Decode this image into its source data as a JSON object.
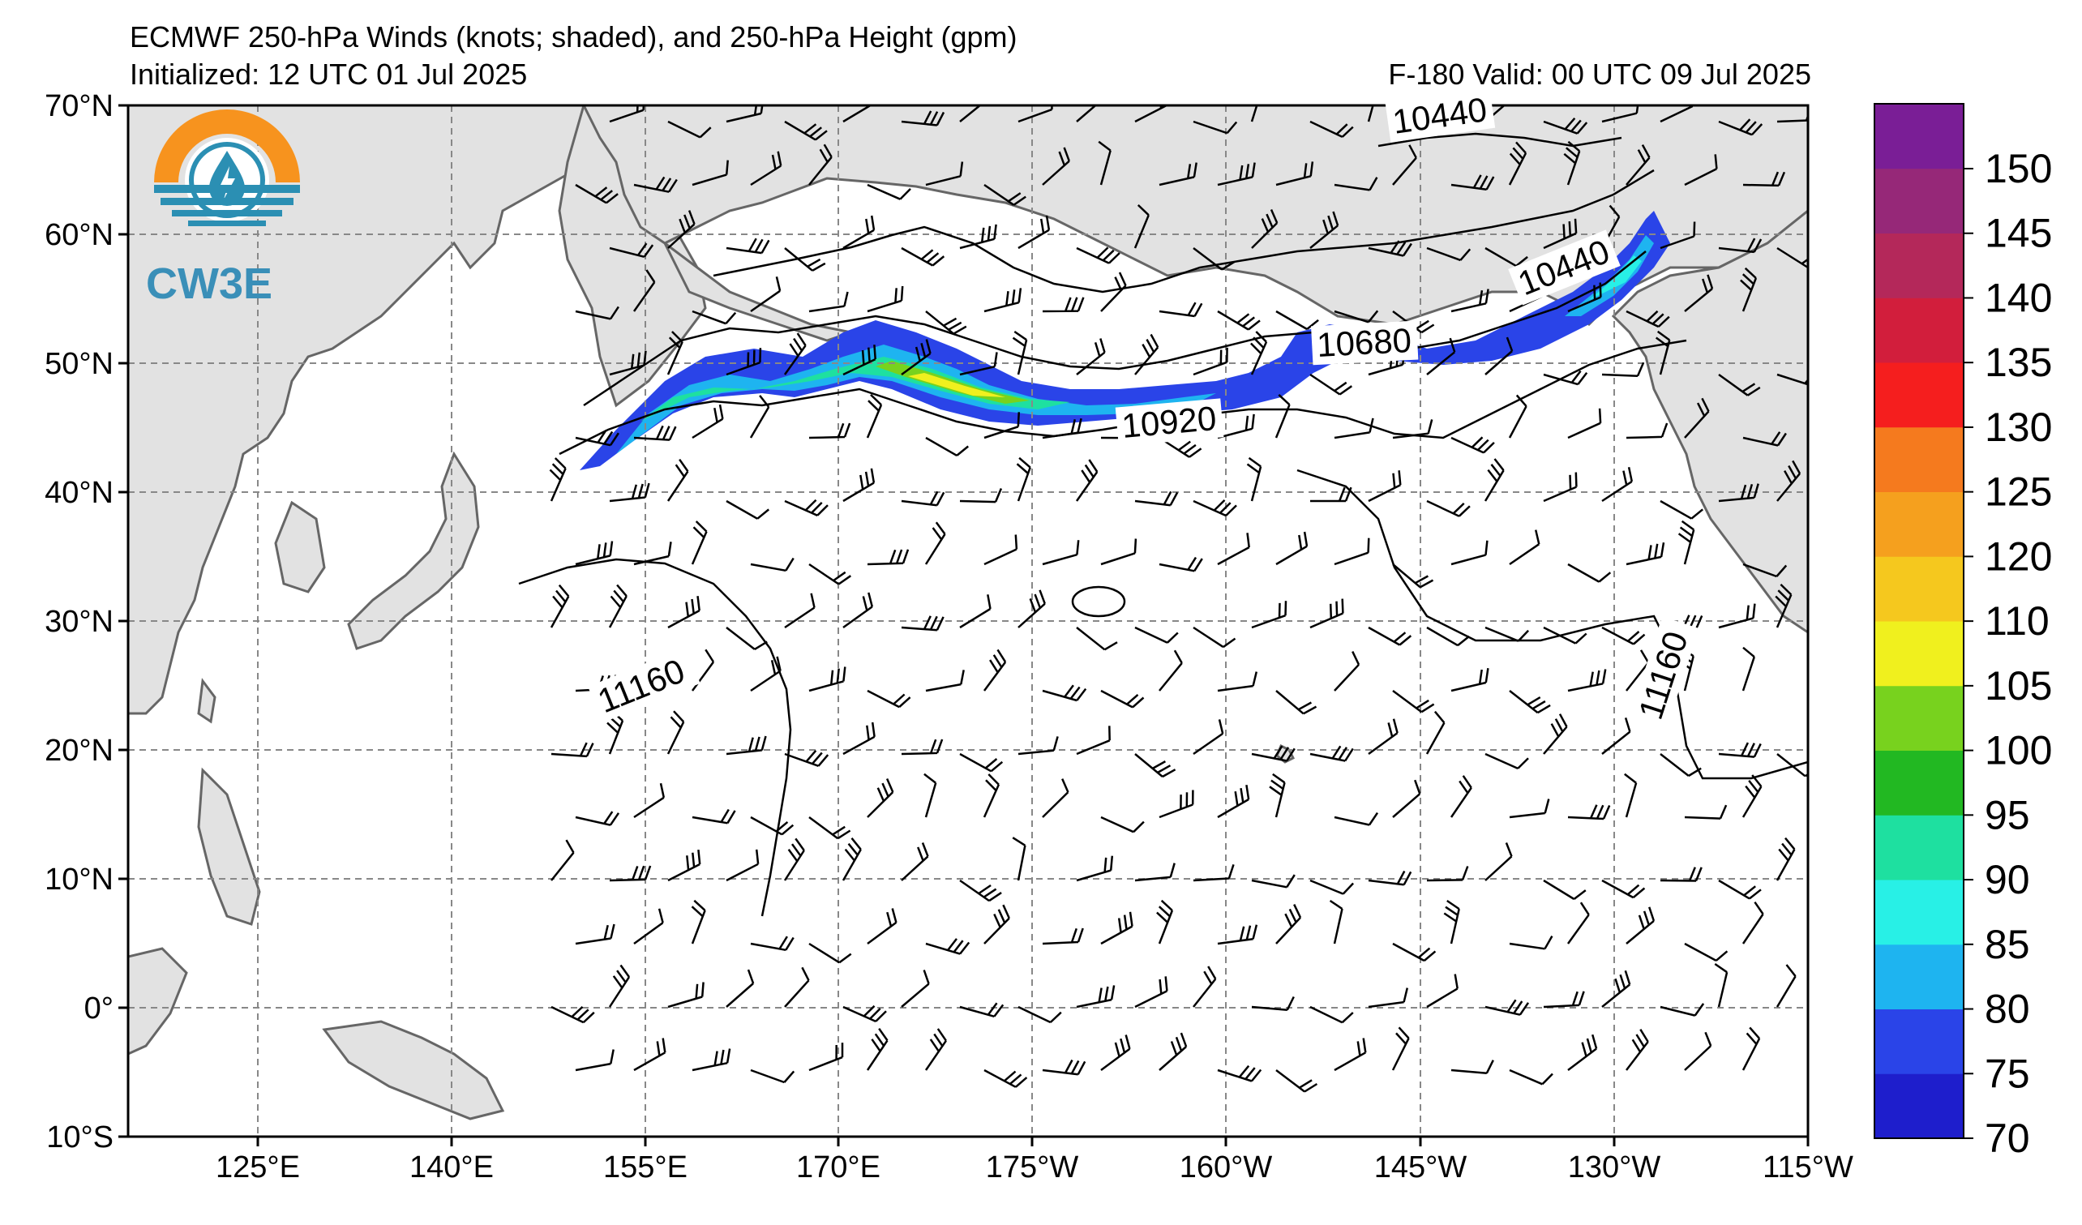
{
  "header": {
    "title": "ECMWF 250-hPa Winds (knots; shaded), and 250-hPa Height (gpm)",
    "initialized": "Initialized: 12 UTC 01 Jul 2025",
    "valid": "F-180  Valid: 00 UTC 09 Jul 2025"
  },
  "logo": {
    "text": "CW3E"
  },
  "map": {
    "lat_labels": [
      "70°N",
      "60°N",
      "50°N",
      "40°N",
      "30°N",
      "20°N",
      "10°N",
      "0°",
      "10°S"
    ],
    "lon_labels": [
      "125°E",
      "140°E",
      "155°E",
      "170°E",
      "175°W",
      "160°W",
      "145°W",
      "130°W",
      "115°W"
    ],
    "lat_range": [
      -10,
      70
    ],
    "lon_range": [
      110,
      245
    ],
    "grid": true,
    "contour_labels": [
      "10440",
      "10440",
      "10680",
      "10920",
      "11160",
      "11160"
    ],
    "colors": {
      "land": "#e2e2e2",
      "coast": "#666666",
      "grid": "#888888",
      "contour": "#000000"
    }
  },
  "colorbar": {
    "ticks": [
      "150",
      "145",
      "140",
      "135",
      "130",
      "125",
      "120",
      "110",
      "105",
      "100",
      "95",
      "90",
      "85",
      "80",
      "75",
      "70"
    ],
    "bins": [
      "#1e1ecc",
      "#2a44e8",
      "#1eb4f0",
      "#28f0e6",
      "#1ee0a0",
      "#22b822",
      "#78d21e",
      "#f0f01e",
      "#f5c81e",
      "#f5a01e",
      "#f57a1e",
      "#f51e1e",
      "#d21e3c",
      "#b4285a",
      "#962878",
      "#7a1e96"
    ]
  }
}
